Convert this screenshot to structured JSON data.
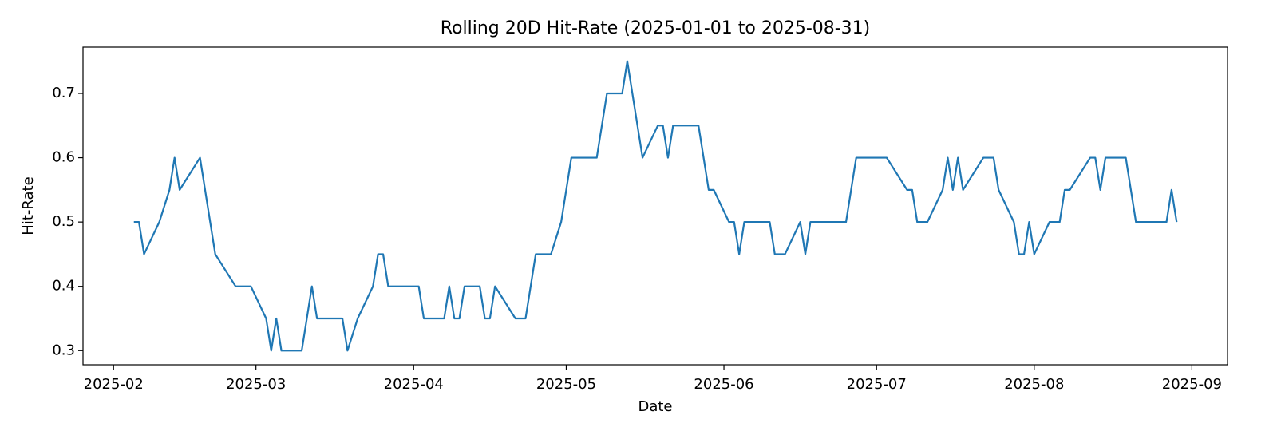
{
  "chart_data": {
    "type": "line",
    "title": "Rolling 20D Hit-Rate (2025-01-01 to 2025-08-31)",
    "x_label": "Date",
    "y_label": "Hit-Rate",
    "x": [
      35,
      36,
      37,
      40,
      42,
      43,
      44,
      48,
      51,
      55,
      58,
      61,
      62,
      63,
      64,
      68,
      70,
      71,
      76,
      77,
      79,
      82,
      83,
      84,
      85,
      91,
      92,
      96,
      97,
      98,
      99,
      100,
      103,
      104,
      105,
      106,
      110,
      112,
      114,
      117,
      119,
      121,
      126,
      128,
      131,
      132,
      135,
      138,
      139,
      140,
      141,
      146,
      148,
      149,
      152,
      153,
      154,
      155,
      160,
      161,
      163,
      166,
      167,
      168,
      175,
      177,
      183,
      187,
      188,
      189,
      191,
      194,
      195,
      196,
      197,
      198,
      202,
      204,
      205,
      208,
      209,
      210,
      211,
      212,
      215,
      217,
      218,
      219,
      223,
      224,
      225,
      226,
      230,
      232,
      238,
      239,
      240
    ],
    "series": [
      {
        "name": "Hit-Rate",
        "color": "#1f77b4",
        "values": [
          0.5,
          0.5,
          0.45,
          0.5,
          0.55,
          0.6,
          0.55,
          0.6,
          0.45,
          0.4,
          0.4,
          0.35,
          0.3,
          0.35,
          0.3,
          0.3,
          0.4,
          0.35,
          0.35,
          0.3,
          0.35,
          0.4,
          0.45,
          0.45,
          0.4,
          0.4,
          0.35,
          0.35,
          0.4,
          0.35,
          0.35,
          0.4,
          0.4,
          0.35,
          0.35,
          0.4,
          0.35,
          0.35,
          0.45,
          0.45,
          0.5,
          0.6,
          0.6,
          0.7,
          0.7,
          0.75,
          0.6,
          0.65,
          0.65,
          0.6,
          0.65,
          0.65,
          0.55,
          0.55,
          0.5,
          0.5,
          0.45,
          0.5,
          0.5,
          0.45,
          0.45,
          0.5,
          0.45,
          0.5,
          0.5,
          0.6,
          0.6,
          0.55,
          0.55,
          0.5,
          0.5,
          0.55,
          0.6,
          0.55,
          0.6,
          0.55,
          0.6,
          0.6,
          0.55,
          0.5,
          0.45,
          0.45,
          0.5,
          0.45,
          0.5,
          0.5,
          0.55,
          0.55,
          0.6,
          0.6,
          0.55,
          0.6,
          0.6,
          0.5,
          0.5,
          0.55,
          0.5
        ]
      }
    ],
    "xlim": [
      25,
      250
    ],
    "xticks": [
      {
        "value": 31,
        "label": "2025-02"
      },
      {
        "value": 59,
        "label": "2025-03"
      },
      {
        "value": 90,
        "label": "2025-04"
      },
      {
        "value": 120,
        "label": "2025-05"
      },
      {
        "value": 151,
        "label": "2025-06"
      },
      {
        "value": 181,
        "label": "2025-07"
      },
      {
        "value": 212,
        "label": "2025-08"
      },
      {
        "value": 243,
        "label": "2025-09"
      }
    ],
    "ylim": [
      0.278,
      0.772
    ],
    "yticks": [
      0.3,
      0.4,
      0.5,
      0.6,
      0.7
    ],
    "grid": false
  }
}
